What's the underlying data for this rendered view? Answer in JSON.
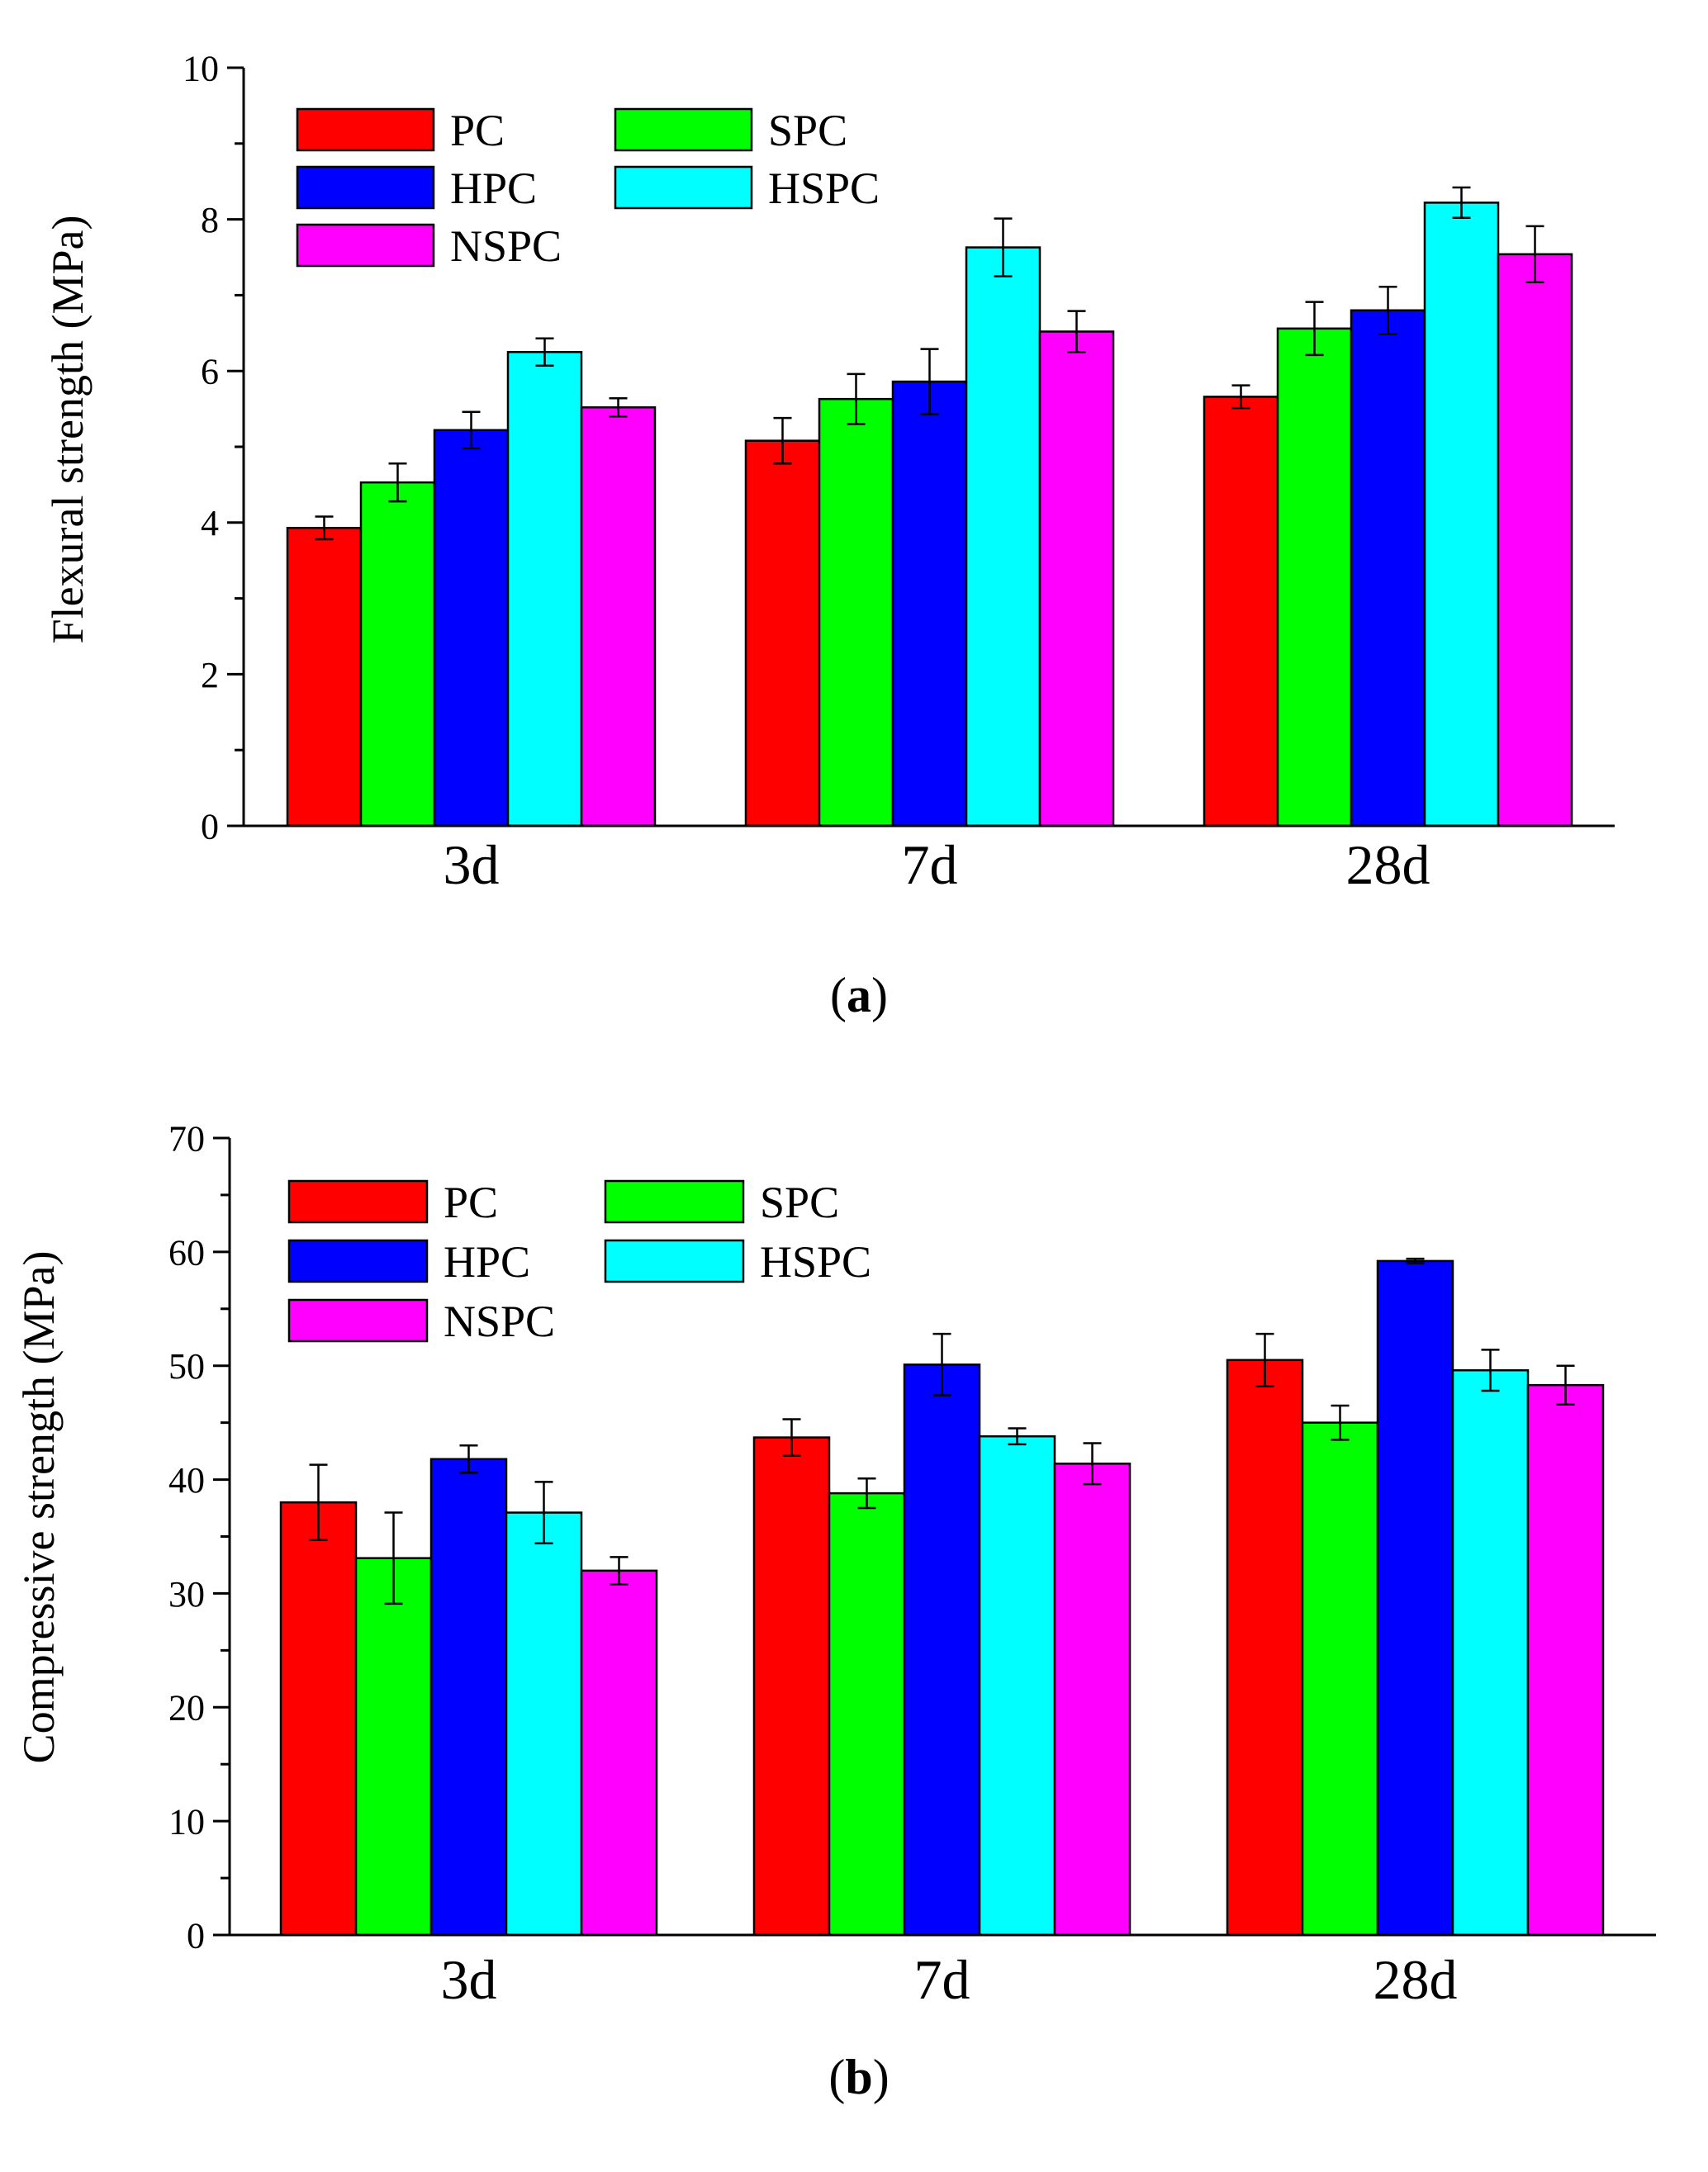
{
  "chart_data": [
    {
      "type": "bar",
      "panel_label": "a",
      "title": "",
      "xlabel": "",
      "ylabel": "Flexural strength (MPa)",
      "ylim": [
        0,
        10
      ],
      "yticks": [
        0,
        2,
        4,
        6,
        8,
        10
      ],
      "categories": [
        "3d",
        "7d",
        "28d"
      ],
      "legend_position": "top-left",
      "series": [
        {
          "name": "PC",
          "color": "#ff0000",
          "values": [
            3.93,
            5.08,
            5.66
          ],
          "errors": [
            0.15,
            0.3,
            0.15
          ]
        },
        {
          "name": "SPC",
          "color": "#00ff00",
          "values": [
            4.53,
            5.63,
            6.56
          ],
          "errors": [
            0.25,
            0.33,
            0.35
          ]
        },
        {
          "name": "HPC",
          "color": "#0000ff",
          "values": [
            5.22,
            5.86,
            6.8
          ],
          "errors": [
            0.24,
            0.43,
            0.31
          ]
        },
        {
          "name": "HSPC",
          "color": "#00ffff",
          "values": [
            6.25,
            7.63,
            8.22
          ],
          "errors": [
            0.18,
            0.38,
            0.2
          ]
        },
        {
          "name": "NSPC",
          "color": "#ff00ff",
          "values": [
            5.52,
            6.52,
            7.54
          ],
          "errors": [
            0.12,
            0.27,
            0.37
          ]
        }
      ]
    },
    {
      "type": "bar",
      "panel_label": "b",
      "title": "",
      "xlabel": "",
      "ylabel": "Compressive strength (MPa)",
      "ylim": [
        0,
        70
      ],
      "yticks": [
        0,
        10,
        20,
        30,
        40,
        50,
        60,
        70
      ],
      "categories": [
        "3d",
        "7d",
        "28d"
      ],
      "legend_position": "top-left",
      "series": [
        {
          "name": "PC",
          "color": "#ff0000",
          "values": [
            38.0,
            43.7,
            50.5
          ],
          "errors": [
            3.3,
            1.6,
            2.3
          ]
        },
        {
          "name": "SPC",
          "color": "#00ff00",
          "values": [
            33.1,
            38.8,
            45.0
          ],
          "errors": [
            4.0,
            1.3,
            1.5
          ]
        },
        {
          "name": "HPC",
          "color": "#0000ff",
          "values": [
            41.8,
            50.1,
            59.2
          ],
          "errors": [
            1.2,
            2.7,
            0.2
          ]
        },
        {
          "name": "HSPC",
          "color": "#00ffff",
          "values": [
            37.1,
            43.8,
            49.6
          ],
          "errors": [
            2.7,
            0.7,
            1.8
          ]
        },
        {
          "name": "NSPC",
          "color": "#ff00ff",
          "values": [
            32.0,
            41.4,
            48.3
          ],
          "errors": [
            1.2,
            1.8,
            1.7
          ]
        }
      ]
    }
  ]
}
